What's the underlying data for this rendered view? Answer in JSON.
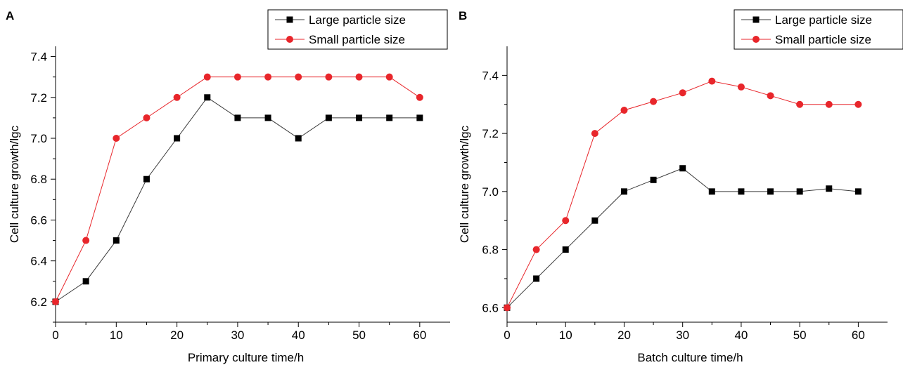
{
  "chart_data": [
    {
      "panel": "A",
      "type": "line",
      "xlabel": "Primary culture time/h",
      "ylabel": "Cell culture growth/lgc",
      "xlim": [
        0,
        65
      ],
      "ylim": [
        6.1,
        7.45
      ],
      "xticks": [
        0,
        10,
        20,
        30,
        40,
        50,
        60
      ],
      "yticks": [
        6.2,
        6.4,
        6.6,
        6.8,
        7.0,
        7.2,
        7.4
      ],
      "ytick_labels": [
        "6.2",
        "6.4",
        "6.6",
        "6.8",
        "7.0",
        "7.2",
        "7.4"
      ],
      "legend_position": "top-right",
      "x": [
        0,
        5,
        10,
        15,
        20,
        25,
        30,
        35,
        40,
        45,
        50,
        55,
        60
      ],
      "series": [
        {
          "name": "Large particle size",
          "marker": "square",
          "color": "#000000",
          "line_color": "#3a3a3a",
          "values": [
            6.2,
            6.3,
            6.5,
            6.8,
            7.0,
            7.2,
            7.1,
            7.1,
            7.0,
            7.1,
            7.1,
            7.1,
            7.1
          ]
        },
        {
          "name": "Small particle size",
          "marker": "circle",
          "color": "#e8262b",
          "line_color": "#e8262b",
          "values": [
            6.2,
            6.5,
            7.0,
            7.1,
            7.2,
            7.3,
            7.3,
            7.3,
            7.3,
            7.3,
            7.3,
            7.3,
            7.2
          ]
        }
      ]
    },
    {
      "panel": "B",
      "type": "line",
      "xlabel": "Batch culture time/h",
      "ylabel": "Cell culture growth/lgc",
      "xlim": [
        0,
        65
      ],
      "ylim": [
        6.55,
        7.5
      ],
      "xticks": [
        0,
        10,
        20,
        30,
        40,
        50,
        60
      ],
      "yticks": [
        6.6,
        6.8,
        7.0,
        7.2,
        7.4
      ],
      "ytick_labels": [
        "6.6",
        "6.8",
        "7.0",
        "7.2",
        "7.4"
      ],
      "legend_position": "top-right",
      "x": [
        0,
        5,
        10,
        15,
        20,
        25,
        30,
        35,
        40,
        45,
        50,
        55,
        60
      ],
      "series": [
        {
          "name": "Large particle size",
          "marker": "square",
          "color": "#000000",
          "line_color": "#3a3a3a",
          "values": [
            6.6,
            6.7,
            6.8,
            6.9,
            7.0,
            7.04,
            7.08,
            7.0,
            7.0,
            7.0,
            7.0,
            7.01,
            7.0
          ]
        },
        {
          "name": "Small particle size",
          "marker": "circle",
          "color": "#e8262b",
          "line_color": "#e8262b",
          "values": [
            6.6,
            6.8,
            6.9,
            7.2,
            7.28,
            7.31,
            7.34,
            7.38,
            7.36,
            7.33,
            7.3,
            7.3,
            7.3
          ]
        }
      ]
    }
  ]
}
